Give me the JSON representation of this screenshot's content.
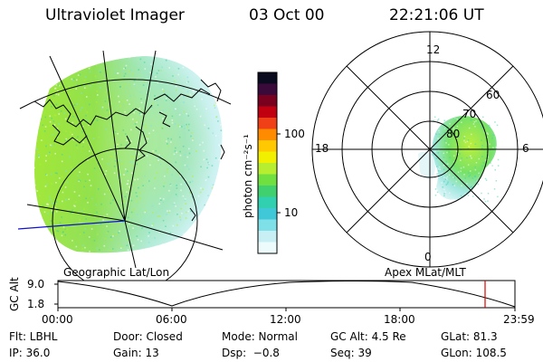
{
  "header": {
    "title": "Ultraviolet Imager",
    "date": "03 Oct 00",
    "time": "22:21:06 UT"
  },
  "colorbar": {
    "unit_label": "photon cm⁻²s⁻¹",
    "ticks": [
      "100",
      "10"
    ],
    "colors": [
      "#0b0b20",
      "#3a0b3a",
      "#7a0020",
      "#c00010",
      "#f04018",
      "#ff8c00",
      "#ffc800",
      "#f0f000",
      "#b8ee30",
      "#70e040",
      "#40d070",
      "#30d0b0",
      "#40c8d8",
      "#80e0e8",
      "#c8f0f4",
      "#eefbfc"
    ]
  },
  "left_map": {
    "label": "Geographic Lat/Lon"
  },
  "polar_plot": {
    "label": "Apex MLat/MLT",
    "mlt_labels": [
      "12",
      "18",
      "6",
      "0"
    ],
    "lat_labels": [
      "60",
      "70",
      "80"
    ]
  },
  "timeline": {
    "y_axis_label": "GC Alt",
    "y_ticks": [
      "9.0",
      "1.8"
    ],
    "x_ticks": [
      "00:00",
      "06:00",
      "12:00",
      "18:00",
      "23:59"
    ],
    "marker_color": "#e00000"
  },
  "info": {
    "filter": "Flt: LBHL",
    "ip": "IP: 36.0",
    "door": "Door: Closed",
    "gain": "Gain: 13",
    "mode": "Mode: Normal",
    "dsp": "Dsp:  −0.8",
    "gc_alt": "GC Alt: 4.5 Re",
    "seq": "Seq: 39",
    "glat": "GLat: 81.3",
    "glon": "GLon: 108.5"
  }
}
